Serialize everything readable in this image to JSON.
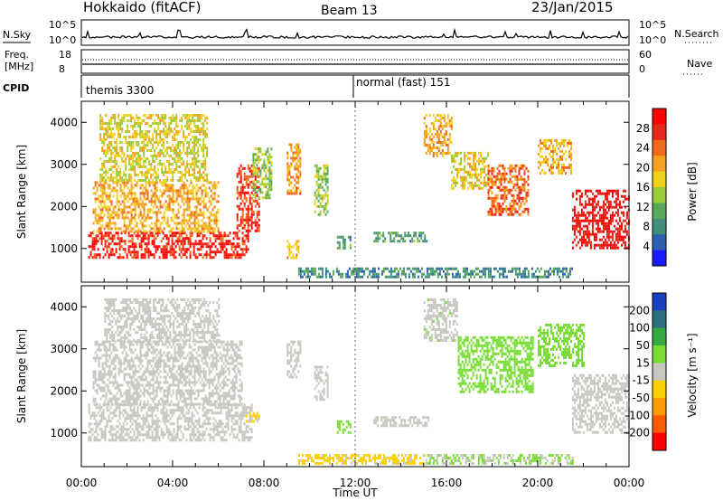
{
  "header": {
    "station": "Hokkaido (fitACF)",
    "beam": "Beam 13",
    "date": "23/Jan/2015"
  },
  "status_panels": {
    "nsky_label": "N.Sky",
    "nsky_ticks": [
      "10^5",
      "10^0"
    ],
    "nsearch_label": "N.Search",
    "freq_label_1": "Freq.",
    "freq_label_2": "[MHz]",
    "freq_ticks": [
      "18",
      "8"
    ],
    "nave_ticks": [
      "60",
      "0"
    ],
    "nave_label": "Nave",
    "cpid_label": "CPID",
    "cpid_modes": [
      {
        "name": "themis 3300",
        "start_hour": 0
      },
      {
        "name": "normal (fast) 151",
        "start_hour": 12
      }
    ]
  },
  "chart_data": [
    {
      "type": "heatmap",
      "title": "",
      "ylabel": "Slant Range [km]",
      "ylim": [
        200,
        4500
      ],
      "yticks": [
        1000,
        2000,
        3000,
        4000
      ],
      "xlim": [
        0,
        24
      ],
      "colorbar": {
        "label": "Power [dB]",
        "ticks": [
          "28",
          "24",
          "20",
          "16",
          "12",
          "8",
          "4"
        ],
        "range": [
          0,
          32
        ],
        "colors": [
          "#1a1aff",
          "#2c5fb0",
          "#3f8f7a",
          "#5aa85a",
          "#9bcc3a",
          "#f0d21e",
          "#f5a020",
          "#f06a1e",
          "#e8281a",
          "#ff0000"
        ]
      },
      "regions": [
        {
          "hours": [
            0.3,
            7.3
          ],
          "range_km": [
            800,
            1400
          ],
          "value": 28
        },
        {
          "hours": [
            0.5,
            6.0
          ],
          "range_km": [
            1400,
            2600
          ],
          "value": 20
        },
        {
          "hours": [
            0.8,
            5.5
          ],
          "range_km": [
            2600,
            4200
          ],
          "value": 17
        },
        {
          "hours": [
            6.8,
            7.8
          ],
          "range_km": [
            1400,
            3000
          ],
          "value": 27
        },
        {
          "hours": [
            7.5,
            8.3
          ],
          "range_km": [
            2200,
            3400
          ],
          "value": 14
        },
        {
          "hours": [
            9.0,
            9.6
          ],
          "range_km": [
            2300,
            3500
          ],
          "value": 22
        },
        {
          "hours": [
            9.0,
            9.5
          ],
          "range_km": [
            800,
            1200
          ],
          "value": 20
        },
        {
          "hours": [
            10.2,
            10.8
          ],
          "range_km": [
            1800,
            3000
          ],
          "value": 14
        },
        {
          "hours": [
            11.2,
            11.8
          ],
          "range_km": [
            1000,
            1300
          ],
          "value": 10
        },
        {
          "hours": [
            12.8,
            15.2
          ],
          "range_km": [
            1200,
            1400
          ],
          "value": 10
        },
        {
          "hours": [
            15.0,
            16.2
          ],
          "range_km": [
            3200,
            4200
          ],
          "value": 20
        },
        {
          "hours": [
            16.2,
            17.8
          ],
          "range_km": [
            2400,
            3300
          ],
          "value": 18
        },
        {
          "hours": [
            17.8,
            19.6
          ],
          "range_km": [
            1800,
            3000
          ],
          "value": 24
        },
        {
          "hours": [
            20.0,
            21.5
          ],
          "range_km": [
            2800,
            3600
          ],
          "value": 20
        },
        {
          "hours": [
            21.5,
            24.0
          ],
          "range_km": [
            1000,
            2400
          ],
          "value": 30
        },
        {
          "hours": [
            9.5,
            21.5
          ],
          "range_km": [
            300,
            550
          ],
          "value": 8
        }
      ]
    },
    {
      "type": "heatmap",
      "title": "",
      "ylabel": "Slant Range [km]",
      "xlabel": "Time UT",
      "ylim": [
        200,
        4500
      ],
      "yticks": [
        1000,
        2000,
        3000,
        4000
      ],
      "xlim": [
        0,
        24
      ],
      "xticks": [
        "00:00",
        "04:00",
        "08:00",
        "12:00",
        "16:00",
        "20:00",
        "00:00"
      ],
      "colorbar": {
        "label": "Velocity [m s⁻¹]",
        "ticks": [
          "200",
          "100",
          "50",
          "15",
          "-15",
          "-50",
          "-100",
          "-200"
        ],
        "range": [
          -250,
          250
        ],
        "colors": [
          "#ff0000",
          "#ff5a00",
          "#ff9a00",
          "#ffd000",
          "#c8c8c0",
          "#77dd33",
          "#33aa44",
          "#2e6e80",
          "#1a3fbf"
        ]
      },
      "regions": [
        {
          "hours": [
            0.3,
            7.5
          ],
          "range_km": [
            800,
            1700
          ],
          "value": 0
        },
        {
          "hours": [
            0.5,
            7.0
          ],
          "range_km": [
            1700,
            3200
          ],
          "value": 5
        },
        {
          "hours": [
            1.0,
            6.0
          ],
          "range_km": [
            3200,
            4200
          ],
          "value": -5
        },
        {
          "hours": [
            7.2,
            7.8
          ],
          "range_km": [
            1300,
            1500
          ],
          "value": -40
        },
        {
          "hours": [
            9.0,
            9.6
          ],
          "range_km": [
            2300,
            3200
          ],
          "value": 0
        },
        {
          "hours": [
            10.2,
            10.8
          ],
          "range_km": [
            1800,
            2600
          ],
          "value": 0
        },
        {
          "hours": [
            11.2,
            11.8
          ],
          "range_km": [
            1000,
            1300
          ],
          "value": 60
        },
        {
          "hours": [
            12.8,
            15.2
          ],
          "range_km": [
            1200,
            1400
          ],
          "value": 0
        },
        {
          "hours": [
            15.0,
            16.5
          ],
          "range_km": [
            3200,
            4200
          ],
          "value": 10
        },
        {
          "hours": [
            16.5,
            19.8
          ],
          "range_km": [
            2000,
            3300
          ],
          "value": 60
        },
        {
          "hours": [
            20.0,
            22.0
          ],
          "range_km": [
            2600,
            3600
          ],
          "value": 60
        },
        {
          "hours": [
            21.5,
            24.0
          ],
          "range_km": [
            1000,
            2400
          ],
          "value": 0
        },
        {
          "hours": [
            9.5,
            15.0
          ],
          "range_km": [
            300,
            500
          ],
          "value": -40
        },
        {
          "hours": [
            15.0,
            21.5
          ],
          "range_km": [
            300,
            500
          ],
          "value": 30
        }
      ]
    }
  ]
}
